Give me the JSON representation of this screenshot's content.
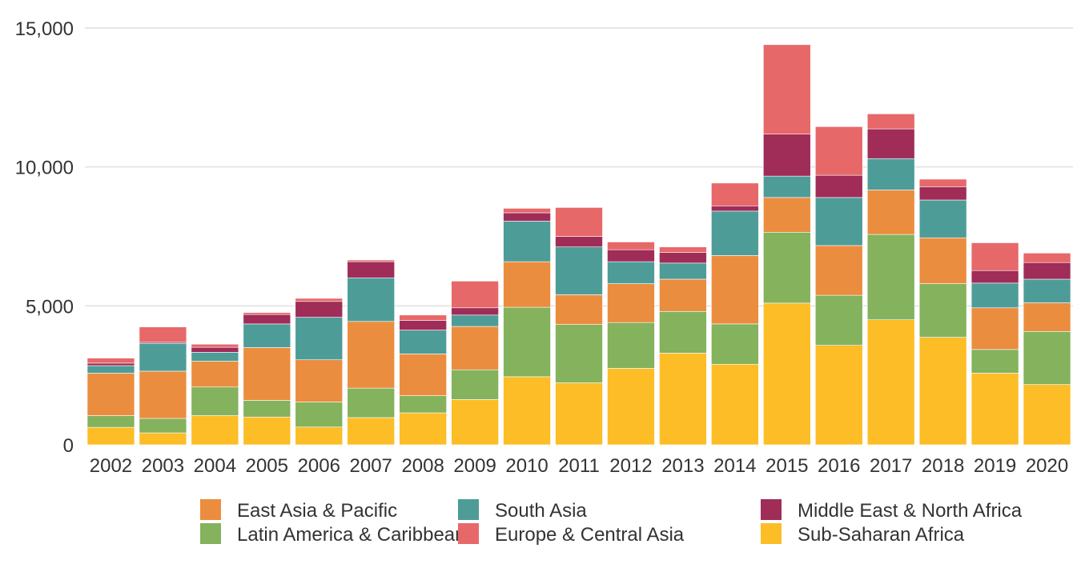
{
  "chart_data": {
    "type": "bar",
    "stacked": true,
    "categories": [
      "2002",
      "2003",
      "2004",
      "2005",
      "2006",
      "2007",
      "2008",
      "2009",
      "2010",
      "2011",
      "2012",
      "2013",
      "2014",
      "2015",
      "2016",
      "2017",
      "2018",
      "2019",
      "2020"
    ],
    "series": [
      {
        "name": "Sub-Saharan Africa",
        "color": "#fdbd26",
        "values": [
          630,
          430,
          1050,
          1000,
          640,
          980,
          1150,
          1630,
          2450,
          2230,
          2750,
          3300,
          2900,
          5100,
          3580,
          4500,
          3870,
          2580,
          2170
        ]
      },
      {
        "name": "Latin America & Caribbean",
        "color": "#84b25d",
        "values": [
          420,
          520,
          1030,
          600,
          900,
          1060,
          620,
          1070,
          2500,
          2100,
          1650,
          1500,
          1450,
          2550,
          1800,
          3070,
          1930,
          850,
          1910
        ]
      },
      {
        "name": "East Asia & Pacific",
        "color": "#eb8d3f",
        "values": [
          1530,
          1700,
          930,
          1900,
          1520,
          2400,
          1500,
          1560,
          1640,
          1070,
          1400,
          1160,
          2460,
          1250,
          1790,
          1600,
          1650,
          1500,
          1030
        ]
      },
      {
        "name": "South Asia",
        "color": "#4e9c98",
        "values": [
          270,
          1000,
          320,
          850,
          1530,
          1570,
          860,
          410,
          1460,
          1720,
          790,
          580,
          1600,
          770,
          1730,
          1130,
          1360,
          890,
          850
        ]
      },
      {
        "name": "Middle East & North Africa",
        "color": "#a02c58",
        "values": [
          90,
          40,
          180,
          340,
          570,
          580,
          350,
          260,
          300,
          380,
          430,
          380,
          190,
          1510,
          800,
          1070,
          480,
          450,
          600
        ]
      },
      {
        "name": "Europe & Central Asia",
        "color": "#e76869",
        "values": [
          180,
          550,
          110,
          70,
          110,
          60,
          190,
          960,
          160,
          1040,
          280,
          200,
          820,
          3220,
          1750,
          540,
          270,
          1000,
          340
        ]
      }
    ],
    "ylim": [
      0,
      15000
    ],
    "yticks": [
      0,
      5000,
      10000,
      15000
    ],
    "ytick_labels": [
      "0",
      "5,000",
      "10,000",
      "15,000"
    ],
    "grid": true,
    "legend_position": "bottom",
    "legend_order": [
      "East Asia & Pacific",
      "Latin America & Caribbean",
      "South Asia",
      "Europe & Central Asia",
      "Middle East & North Africa",
      "Sub-Saharan Africa"
    ],
    "title": "",
    "xlabel": "",
    "ylabel": ""
  }
}
